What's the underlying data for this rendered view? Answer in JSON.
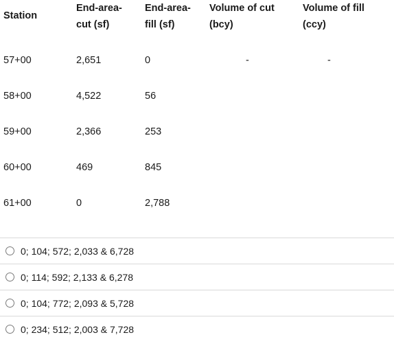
{
  "table": {
    "headers": {
      "station": "Station",
      "cut_area": [
        "End-area-",
        "cut (sf)"
      ],
      "fill_area": [
        "End-area-",
        "fill (sf)"
      ],
      "cut_volume": [
        "Volume of cut",
        "(bcy)"
      ],
      "fill_volume": [
        "Volume of fill",
        "(ccy)"
      ]
    },
    "rows": [
      {
        "station": "57+00",
        "cut": "2,651",
        "fill": "0",
        "vol_cut": "-",
        "vol_fill": "-"
      },
      {
        "station": "58+00",
        "cut": "4,522",
        "fill": "56",
        "vol_cut": "",
        "vol_fill": ""
      },
      {
        "station": "59+00",
        "cut": "2,366",
        "fill": "253",
        "vol_cut": "",
        "vol_fill": ""
      },
      {
        "station": "60+00",
        "cut": "469",
        "fill": "845",
        "vol_cut": "",
        "vol_fill": ""
      },
      {
        "station": "61+00",
        "cut": "0",
        "fill": "2,788",
        "vol_cut": "",
        "vol_fill": ""
      }
    ]
  },
  "options": [
    {
      "label": "0; 104; 572; 2,033 & 6,728"
    },
    {
      "label": "0; 114; 592; 2,133 & 6,278"
    },
    {
      "label": "0; 104; 772; 2,093 & 5,728"
    },
    {
      "label": "0; 234; 512; 2,003 & 7,728"
    }
  ]
}
